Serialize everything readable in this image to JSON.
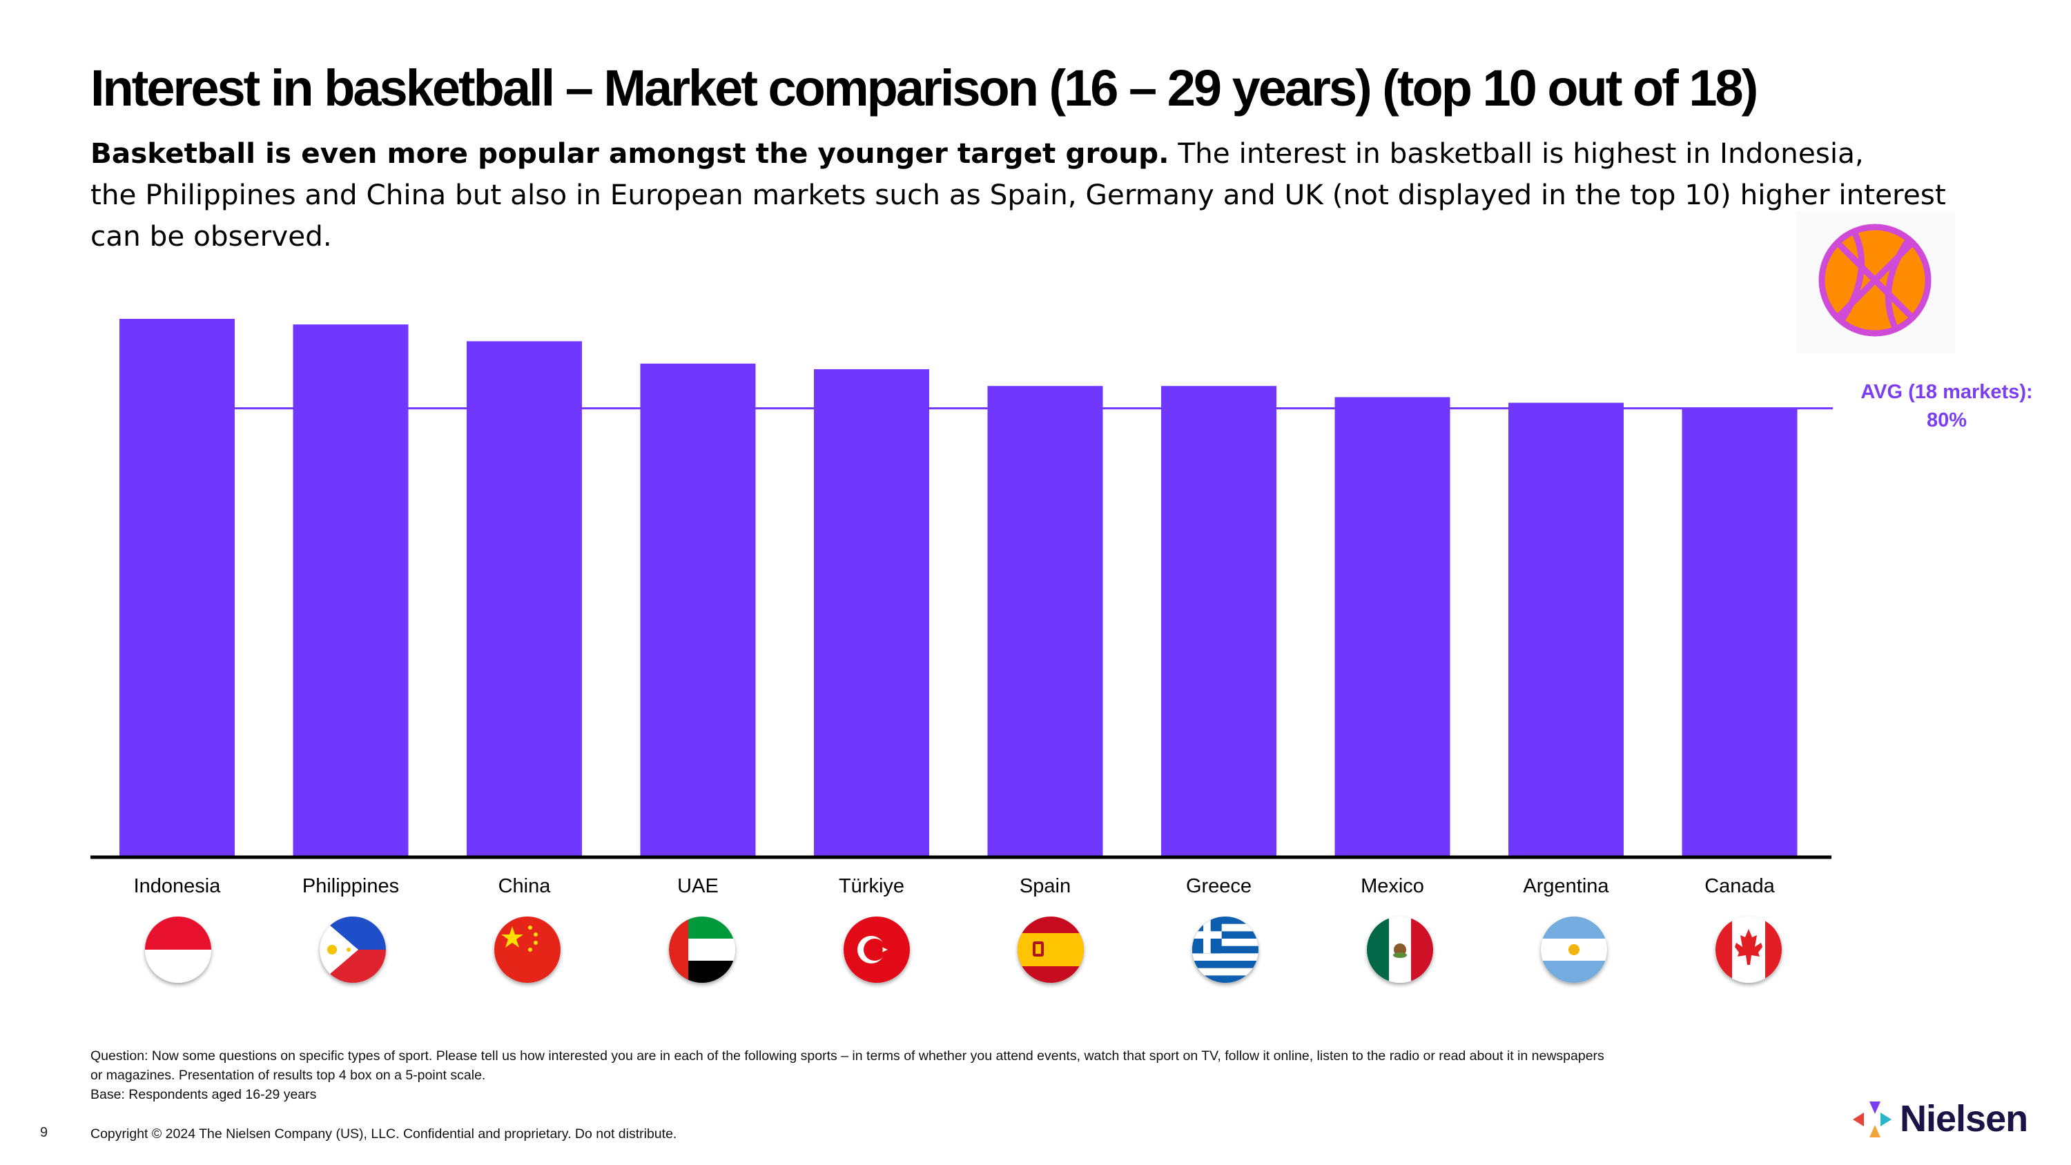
{
  "title": "Interest in basketball – Market comparison (16 – 29 years) (top 10 out of 18)",
  "subtitle": {
    "bold": "Basketball is even more popular amongst the younger target group.",
    "line1": " The interest in basketball is highest in Indonesia,",
    "line2": "the Philippines and China but also in European markets such as Spain, Germany and UK (not displayed in the top 10) higher interest",
    "line3": "can be observed."
  },
  "average": {
    "line1": "AVG (18 markets):",
    "line2": "80%"
  },
  "colors": {
    "bar": "#7038ff",
    "accent": "#7b3ef2",
    "ball": "#ff8c00",
    "ball_lines": "#d04ad8"
  },
  "chart_data": {
    "type": "bar",
    "categories": [
      "Indonesia",
      "Philippines",
      "China",
      "UAE",
      "Türkiye",
      "Spain",
      "Greece",
      "Mexico",
      "Argentina",
      "Canada"
    ],
    "values": [
      96,
      95,
      92,
      88,
      87,
      84,
      84,
      82,
      81,
      80
    ],
    "average": 80,
    "ylim": [
      0,
      100
    ]
  },
  "flags": [
    "indonesia-flag-icon",
    "philippines-flag-icon",
    "china-flag-icon",
    "uae-flag-icon",
    "turkiye-flag-icon",
    "spain-flag-icon",
    "greece-flag-icon",
    "mexico-flag-icon",
    "argentina-flag-icon",
    "canada-flag-icon"
  ],
  "footnote": {
    "line1": "Question: Now some questions on specific types of sport. Please tell us how interested you are in each of the following sports – in terms of whether you attend events, watch that sport on TV, follow it online, listen to the radio or read about it in newspapers",
    "line2": "or magazines. Presentation of results top 4 box on a 5-point scale.",
    "line3": "Base: Respondents aged 16-29 years"
  },
  "page_number": "9",
  "copyright": "Copyright © 2024 The Nielsen Company (US), LLC. Confidential and proprietary. Do not distribute.",
  "logo_text": "Nielsen"
}
